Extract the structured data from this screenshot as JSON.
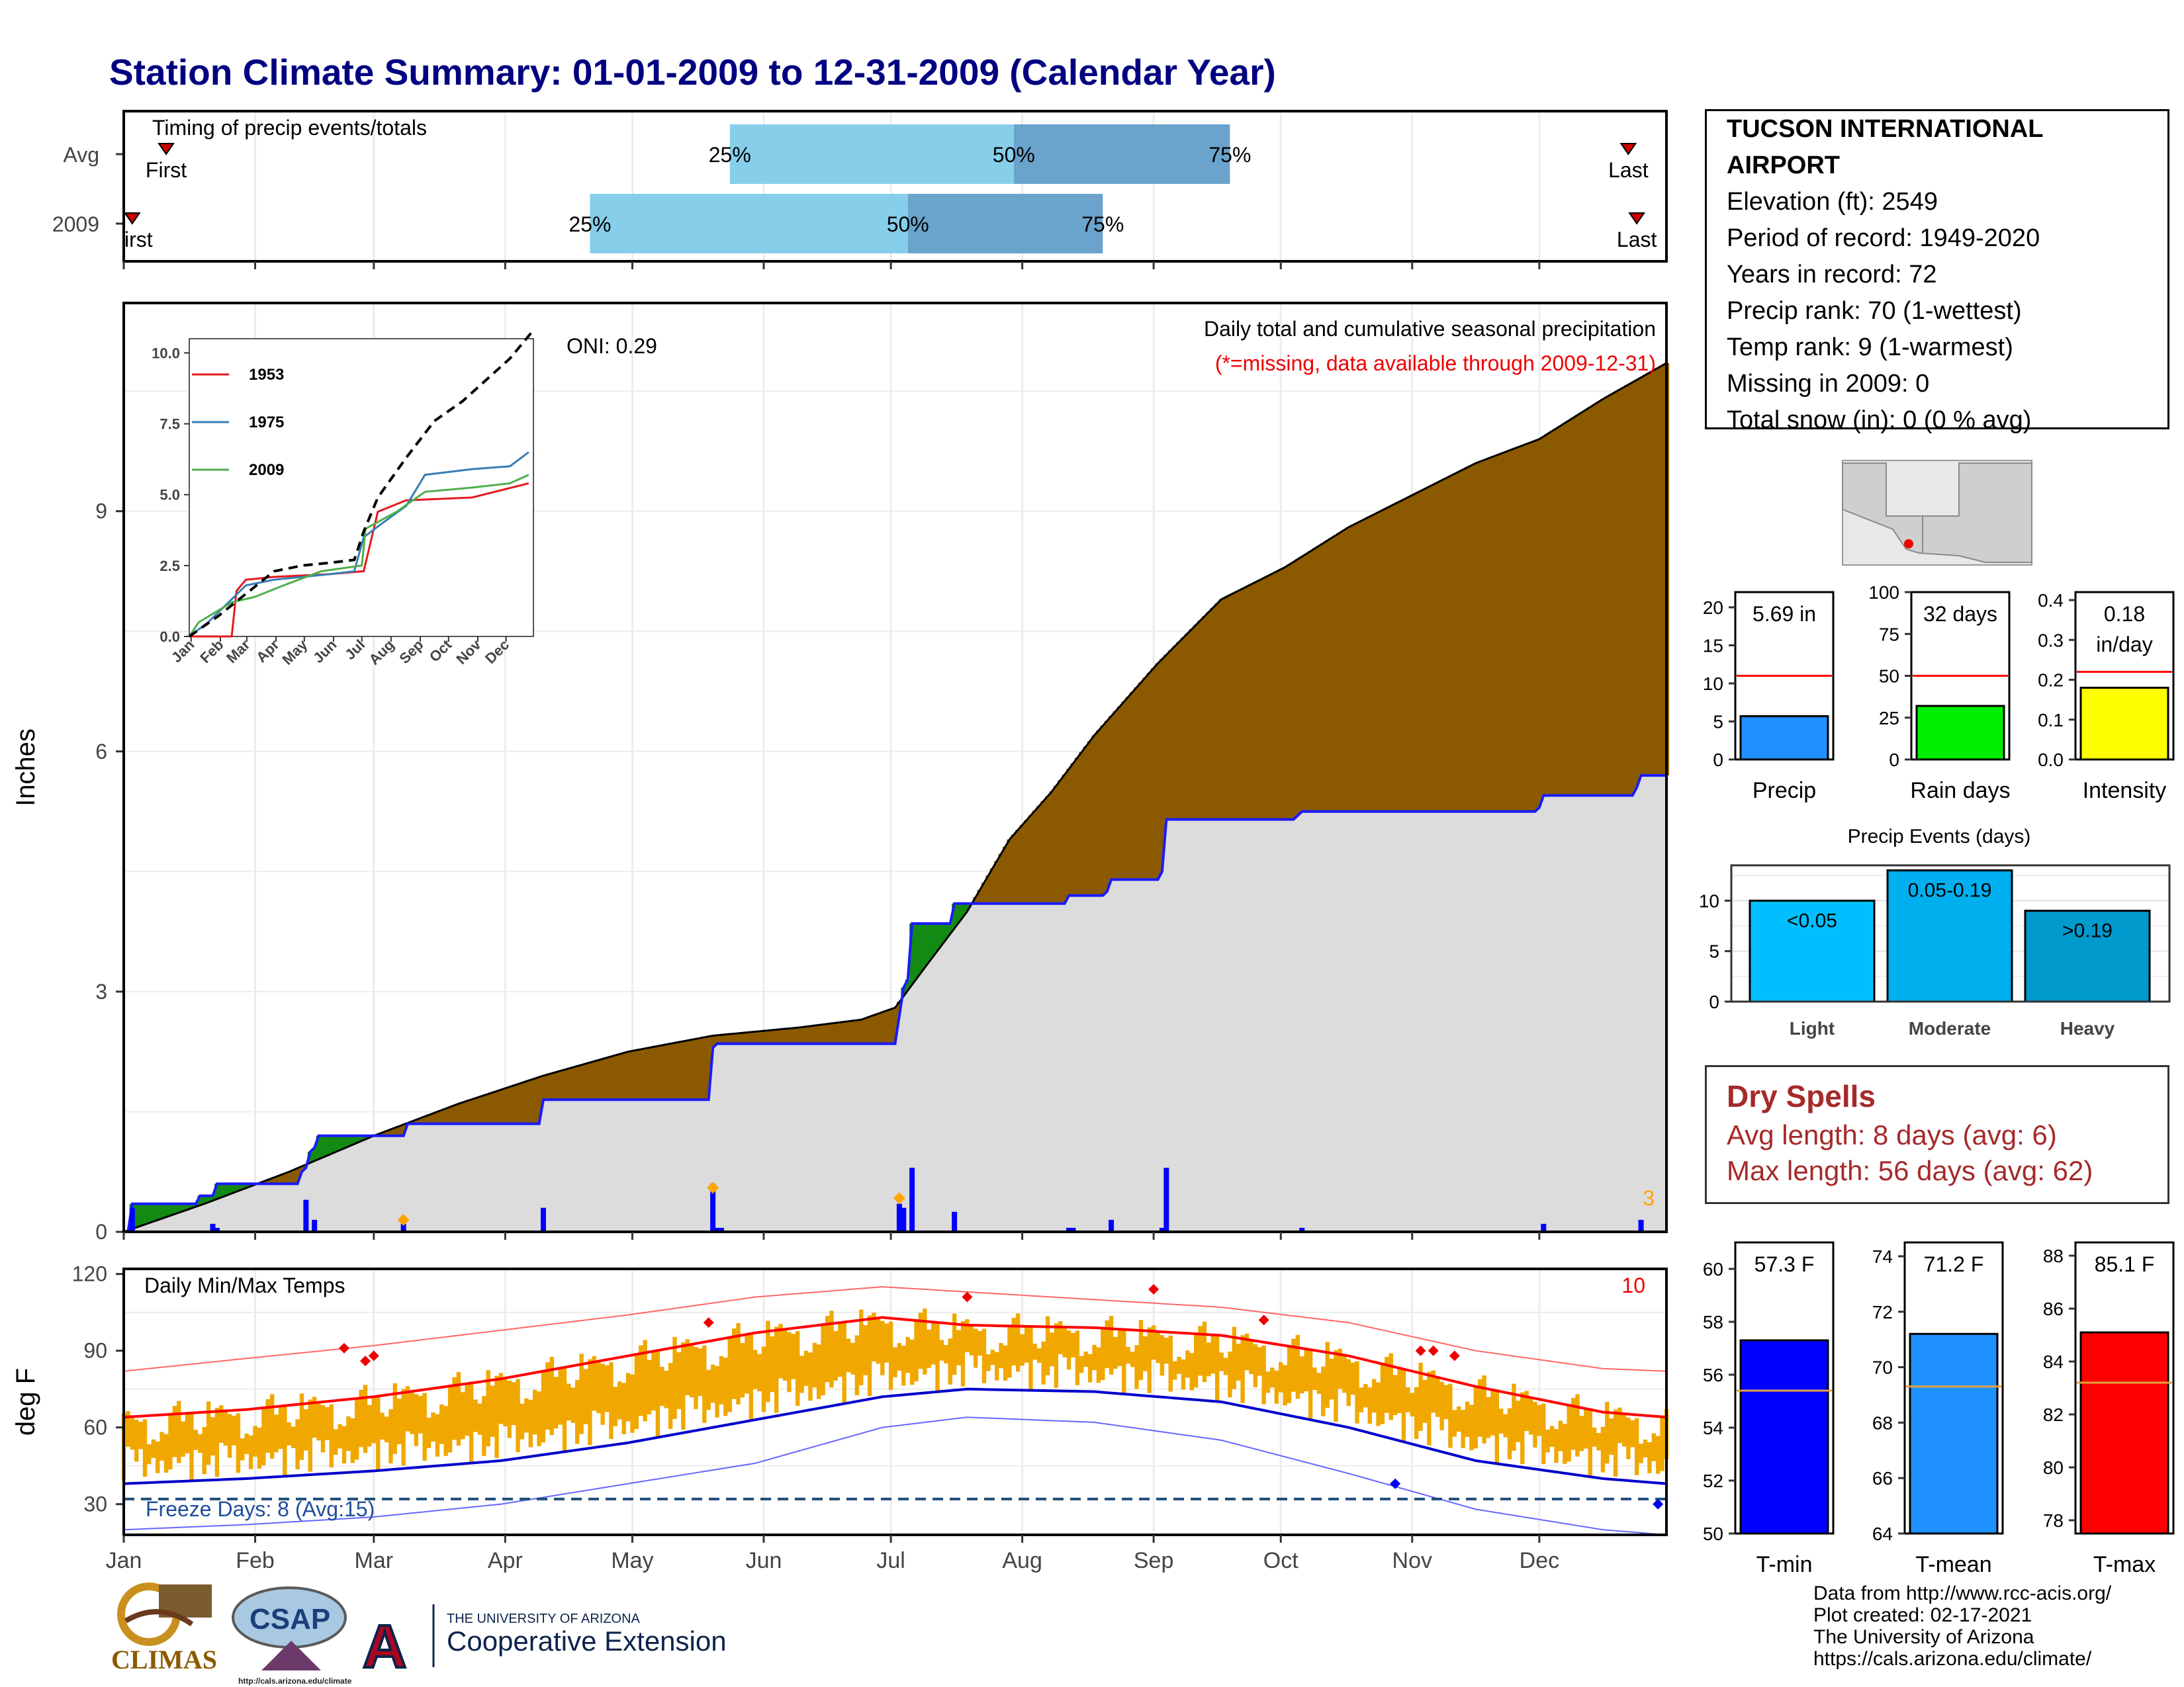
{
  "header": {
    "title": "Station Climate Summary: 01-01-2009 to 12-31-2009 (Calendar Year)"
  },
  "station": {
    "name_line1": "TUCSON INTERNATIONAL",
    "name_line2": "AIRPORT",
    "elevation": "Elevation (ft): 2549",
    "period": "Period of record: 1949-2020",
    "years": "Years in record: 72",
    "precip_rank": "Precip rank: 70 (1-wettest)",
    "temp_rank": "Temp rank: 9 (1-warmest)",
    "missing": "Missing in 2009: 0",
    "snow": "Total snow (in): 0 (0 % avg)"
  },
  "dry_spells": {
    "title": "Dry Spells",
    "avg": "Avg length: 8 days (avg: 6)",
    "max": "Max length: 56 days (avg: 62)"
  },
  "credits": {
    "line1": "Data from http://www.rcc-acis.org/",
    "line2": "Plot created: 02-17-2021",
    "line3": "The University of Arizona",
    "line4": "https://cals.arizona.edu/climate/"
  },
  "logos": {
    "climas": "CLIMAS",
    "csap": "CSAP",
    "csap_url": "http://cals.arizona.edu/climate",
    "ua_small": "THE UNIVERSITY OF ARIZONA",
    "ua_big": "Cooperative Extension",
    "ua_letter": "A"
  },
  "chart_data": [
    {
      "type": "bar",
      "id": "timing",
      "title": "Timing of precip events/totals",
      "rows": [
        "Avg",
        "2009"
      ],
      "percentile_labels": [
        "25%",
        "50%",
        "75%"
      ],
      "first_label": "First",
      "first_label_clipped": "irst",
      "last_label": "Last",
      "avg": {
        "first_day": 11,
        "p25": 144,
        "p50": 211,
        "p75": 262,
        "last_day": 356
      },
      "y2009": {
        "first_day": 3,
        "p25": 111,
        "p50": 186,
        "p75": 232,
        "last_day": 358
      },
      "colors": {
        "light": "#87ceeb",
        "dark": "#6aa3cb",
        "marker": "#cc0000"
      }
    },
    {
      "type": "area",
      "id": "precip",
      "title": "Daily total and cumulative seasonal precipitation",
      "subtitle": "(*=missing, data available through 2009-12-31)",
      "oni": "ONI: 0.29",
      "corner_count": "3",
      "ylabel": "Inches",
      "ylim": [
        0,
        11.6
      ],
      "yticks": [
        0,
        3,
        6,
        9
      ],
      "avg_cumulative": [
        [
          1,
          0
        ],
        [
          20,
          0.35
        ],
        [
          40,
          0.75
        ],
        [
          60,
          1.2
        ],
        [
          80,
          1.6
        ],
        [
          100,
          1.95
        ],
        [
          120,
          2.25
        ],
        [
          140,
          2.45
        ],
        [
          160,
          2.55
        ],
        [
          175,
          2.65
        ],
        [
          183,
          2.8
        ],
        [
          190,
          3.3
        ],
        [
          200,
          4.0
        ],
        [
          210,
          4.9
        ],
        [
          220,
          5.5
        ],
        [
          230,
          6.2
        ],
        [
          245,
          7.1
        ],
        [
          260,
          7.9
        ],
        [
          275,
          8.3
        ],
        [
          290,
          8.8
        ],
        [
          305,
          9.2
        ],
        [
          320,
          9.6
        ],
        [
          335,
          9.9
        ],
        [
          350,
          10.4
        ],
        [
          365,
          10.85
        ]
      ],
      "year_cumulative": [
        [
          1,
          0
        ],
        [
          3,
          0.35
        ],
        [
          18,
          0.35
        ],
        [
          19,
          0.45
        ],
        [
          22,
          0.45
        ],
        [
          23,
          0.6
        ],
        [
          42,
          0.6
        ],
        [
          43,
          0.75
        ],
        [
          44,
          0.8
        ],
        [
          45,
          1.0
        ],
        [
          46,
          1.05
        ],
        [
          47,
          1.2
        ],
        [
          67,
          1.2
        ],
        [
          68,
          1.35
        ],
        [
          99,
          1.35
        ],
        [
          100,
          1.65
        ],
        [
          139,
          1.65
        ],
        [
          140,
          2.3
        ],
        [
          141,
          2.35
        ],
        [
          183,
          2.35
        ],
        [
          184,
          2.7
        ],
        [
          185,
          3.05
        ],
        [
          186,
          3.15
        ],
        [
          187,
          3.85
        ],
        [
          196,
          3.85
        ],
        [
          197,
          4.1
        ],
        [
          223,
          4.1
        ],
        [
          224,
          4.2
        ],
        [
          233,
          4.25
        ],
        [
          234,
          4.4
        ],
        [
          246,
          4.5
        ],
        [
          247,
          5.15
        ],
        [
          278,
          5.2
        ],
        [
          279,
          5.25
        ],
        [
          335,
          5.3
        ],
        [
          336,
          5.45
        ],
        [
          358,
          5.55
        ],
        [
          359,
          5.7
        ],
        [
          365,
          5.7
        ]
      ],
      "daily_bars": [
        [
          3,
          0.3
        ],
        [
          22,
          0.1
        ],
        [
          23,
          0.05
        ],
        [
          44,
          0.4
        ],
        [
          46,
          0.15
        ],
        [
          67,
          0.1
        ],
        [
          100,
          0.3
        ],
        [
          140,
          0.6
        ],
        [
          141,
          0.05
        ],
        [
          142,
          0.05
        ],
        [
          184,
          0.35
        ],
        [
          185,
          0.3
        ],
        [
          187,
          0.8
        ],
        [
          197,
          0.25
        ],
        [
          224,
          0.05
        ],
        [
          225,
          0.05
        ],
        [
          234,
          0.15
        ],
        [
          246,
          0.05
        ],
        [
          247,
          0.8
        ],
        [
          279,
          0.05
        ],
        [
          336,
          0.1
        ],
        [
          359,
          0.15
        ]
      ],
      "diamonds": [
        [
          67,
          0.15
        ],
        [
          140,
          0.55
        ],
        [
          184,
          0.42
        ]
      ],
      "colors": {
        "above": "#8b5a00",
        "below_green": "#138a13",
        "fill": "#dcdcdc",
        "line": "#1a1aff",
        "bars": "#0000ff",
        "diamond": "#ffa500"
      }
    },
    {
      "type": "line",
      "id": "inset",
      "yticks": [
        0.0,
        2.5,
        5.0,
        7.5,
        10.0
      ],
      "ytick_labels": [
        "0.0",
        "2.5",
        "5.0",
        "7.5",
        "10.0"
      ],
      "xtick_labels": [
        "Jan",
        "Feb",
        "Mar",
        "Apr",
        "May",
        "Jun",
        "Jul",
        "Aug",
        "Sep",
        "Oct",
        "Nov",
        "Dec"
      ],
      "ylim": [
        0,
        10.5
      ],
      "series": [
        {
          "name": "1953",
          "color": "#e41a1c",
          "points": [
            [
              0,
              0
            ],
            [
              45,
              0
            ],
            [
              50,
              1.6
            ],
            [
              60,
              2.0
            ],
            [
              90,
              2.1
            ],
            [
              150,
              2.2
            ],
            [
              185,
              2.3
            ],
            [
              200,
              4.4
            ],
            [
              230,
              4.8
            ],
            [
              300,
              4.9
            ],
            [
              360,
              5.4
            ]
          ]
        },
        {
          "name": "1975",
          "color": "#377eb8",
          "points": [
            [
              0,
              0
            ],
            [
              20,
              0.5
            ],
            [
              60,
              1.8
            ],
            [
              90,
              2.0
            ],
            [
              150,
              2.2
            ],
            [
              175,
              2.3
            ],
            [
              185,
              3.5
            ],
            [
              205,
              4.0
            ],
            [
              230,
              4.6
            ],
            [
              250,
              5.7
            ],
            [
              300,
              5.9
            ],
            [
              340,
              6.0
            ],
            [
              360,
              6.5
            ]
          ]
        },
        {
          "name": "2009",
          "color": "#4daf4a",
          "points": [
            [
              0,
              0
            ],
            [
              10,
              0.5
            ],
            [
              45,
              1.2
            ],
            [
              70,
              1.4
            ],
            [
              100,
              1.8
            ],
            [
              140,
              2.3
            ],
            [
              183,
              2.5
            ],
            [
              187,
              3.8
            ],
            [
              220,
              4.4
            ],
            [
              250,
              5.1
            ],
            [
              300,
              5.25
            ],
            [
              340,
              5.4
            ],
            [
              360,
              5.7
            ]
          ]
        },
        {
          "name": "",
          "color": "#000000",
          "dashed": true,
          "points": [
            [
              0,
              0
            ],
            [
              30,
              0.7
            ],
            [
              60,
              1.5
            ],
            [
              90,
              2.3
            ],
            [
              120,
              2.5
            ],
            [
              150,
              2.6
            ],
            [
              175,
              2.7
            ],
            [
              185,
              3.7
            ],
            [
              200,
              4.9
            ],
            [
              230,
              6.3
            ],
            [
              260,
              7.6
            ],
            [
              290,
              8.3
            ],
            [
              320,
              9.2
            ],
            [
              340,
              9.8
            ],
            [
              365,
              10.8
            ]
          ]
        }
      ]
    },
    {
      "type": "bar",
      "id": "precip_total",
      "value_label": "5.69 in",
      "value": 5.69,
      "avg": 11.0,
      "xlabel": "Precip",
      "ylim": [
        0,
        22
      ],
      "yticks": [
        0,
        5,
        10,
        15,
        20
      ],
      "color": "#1e90ff"
    },
    {
      "type": "bar",
      "id": "rain_days",
      "value_label": "32 days",
      "value": 32,
      "avg": 50,
      "xlabel": "Rain days",
      "ylim": [
        0,
        100
      ],
      "yticks": [
        0,
        25,
        50,
        75,
        100
      ],
      "color": "#00ee00"
    },
    {
      "type": "bar",
      "id": "intensity",
      "value_label_1": "0.18",
      "value_label_2": "in/day",
      "value": 0.18,
      "avg": 0.22,
      "xlabel": "Intensity",
      "ylim": [
        0,
        0.42
      ],
      "yticks": [
        0.0,
        0.1,
        0.2,
        0.3,
        0.4
      ],
      "color": "#ffff00"
    },
    {
      "type": "bar",
      "id": "precip_events",
      "title": "Precip Events (days)",
      "categories": [
        "Light",
        "Moderate",
        "Heavy"
      ],
      "labels": [
        "<0.05",
        "0.05-0.19",
        ">0.19"
      ],
      "values": [
        10,
        13,
        9
      ],
      "ylim": [
        0,
        13.5
      ],
      "yticks": [
        0,
        5,
        10
      ],
      "colors": [
        "#00bfff",
        "#00b0ee",
        "#009acd"
      ]
    },
    {
      "type": "line",
      "id": "temps",
      "title": "Daily Min/Max Temps",
      "corner_count": "10",
      "freeze_label": "Freeze Days: 8 (Avg:15)",
      "ylabel": "deg F",
      "ylim": [
        18,
        122
      ],
      "yticks": [
        30,
        60,
        90,
        120
      ],
      "freeze_line": 32,
      "months": [
        "Jan",
        "Feb",
        "Mar",
        "Apr",
        "May",
        "Jun",
        "Jul",
        "Aug",
        "Sep",
        "Oct",
        "Nov",
        "Dec"
      ],
      "avg_max": [
        [
          1,
          64
        ],
        [
          30,
          67
        ],
        [
          60,
          72
        ],
        [
          90,
          79
        ],
        [
          120,
          88
        ],
        [
          150,
          97
        ],
        [
          180,
          103
        ],
        [
          200,
          100
        ],
        [
          230,
          99
        ],
        [
          260,
          96
        ],
        [
          290,
          88
        ],
        [
          320,
          76
        ],
        [
          350,
          66
        ],
        [
          365,
          64
        ]
      ],
      "avg_min": [
        [
          1,
          38
        ],
        [
          30,
          40
        ],
        [
          60,
          43
        ],
        [
          90,
          47
        ],
        [
          120,
          54
        ],
        [
          150,
          63
        ],
        [
          180,
          72
        ],
        [
          200,
          75
        ],
        [
          230,
          74
        ],
        [
          260,
          70
        ],
        [
          290,
          60
        ],
        [
          320,
          47
        ],
        [
          350,
          40
        ],
        [
          365,
          38
        ]
      ],
      "rec_max": [
        [
          1,
          82
        ],
        [
          30,
          87
        ],
        [
          60,
          92
        ],
        [
          90,
          98
        ],
        [
          120,
          104
        ],
        [
          150,
          111
        ],
        [
          180,
          115
        ],
        [
          200,
          113
        ],
        [
          230,
          110
        ],
        [
          260,
          107
        ],
        [
          290,
          101
        ],
        [
          320,
          90
        ],
        [
          350,
          83
        ],
        [
          365,
          82
        ]
      ],
      "rec_min": [
        [
          1,
          20
        ],
        [
          30,
          22
        ],
        [
          60,
          25
        ],
        [
          90,
          30
        ],
        [
          120,
          38
        ],
        [
          150,
          46
        ],
        [
          180,
          60
        ],
        [
          200,
          64
        ],
        [
          230,
          62
        ],
        [
          260,
          55
        ],
        [
          290,
          42
        ],
        [
          320,
          28
        ],
        [
          350,
          20
        ],
        [
          365,
          18
        ]
      ],
      "obs_max_anom": [
        2,
        -5,
        4,
        8,
        -3,
        -8,
        3,
        6,
        -2,
        5,
        10,
        -4,
        -6,
        2,
        7,
        9,
        -3,
        1,
        5,
        -7,
        3,
        4
      ],
      "obs_min_anom": [
        3,
        -2,
        5,
        6,
        1,
        -4,
        2,
        4,
        -3,
        3,
        7,
        -2,
        -3,
        1,
        4,
        6,
        -1,
        0,
        3,
        -5,
        2,
        3
      ],
      "record_markers": [
        [
          53,
          91
        ],
        [
          58,
          86
        ],
        [
          60,
          88
        ],
        [
          139,
          101
        ],
        [
          200,
          111
        ],
        [
          244,
          114
        ],
        [
          270,
          102
        ],
        [
          307,
          90
        ],
        [
          310,
          90
        ],
        [
          315,
          88
        ]
      ],
      "record_low_markers": [
        [
          301,
          38
        ],
        [
          363,
          30
        ]
      ],
      "colors": {
        "bars": "#f0a800",
        "avg_max": "#ff0000",
        "avg_min": "#0000cc",
        "rec_max": "#ff6666",
        "rec_min": "#6666ff",
        "freeze": "#1f4e79"
      }
    },
    {
      "type": "bar",
      "id": "tmin",
      "value_label": "57.3 F",
      "value": 57.3,
      "avg": 55.4,
      "xlabel": "T-min",
      "ylim": [
        50,
        61
      ],
      "yticks": [
        50,
        52,
        54,
        56,
        58,
        60
      ],
      "color": "#0000ff"
    },
    {
      "type": "bar",
      "id": "tmean",
      "value_label": "71.2 F",
      "value": 71.2,
      "avg": 69.3,
      "xlabel": "T-mean",
      "ylim": [
        64,
        74.5
      ],
      "yticks": [
        64,
        66,
        68,
        70,
        72,
        74
      ],
      "color": "#1e90ff"
    },
    {
      "type": "bar",
      "id": "tmax",
      "value_label": "85.1 F",
      "value": 85.1,
      "avg": 83.2,
      "xlabel": "T-max",
      "ylim": [
        77.5,
        88.5
      ],
      "yticks": [
        78,
        80,
        82,
        84,
        86,
        88
      ],
      "color": "#ff0000"
    }
  ]
}
